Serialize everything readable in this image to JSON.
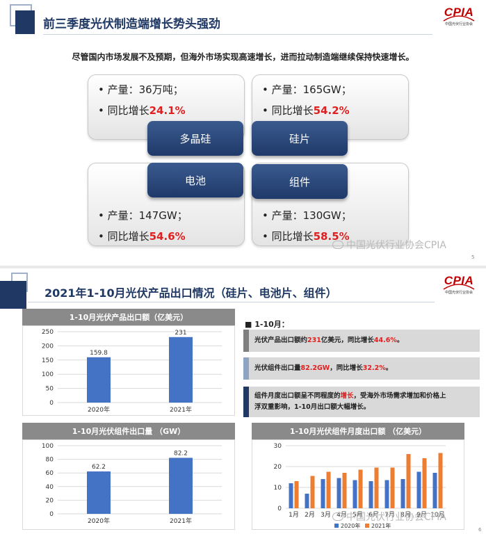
{
  "slide1": {
    "title": "前三季度光伏制造端增长势头强劲",
    "logo_text": "CPIA",
    "logo_sub": "中国光伏行业协会",
    "subtitle": "尽管国内市场发展不及预期，但海外市场实现高速增长，进而拉动制造端继续保持快速增长。",
    "boxes": [
      {
        "name": "多晶硅",
        "prod_label": "• 产量：",
        "prod_value": "36万吨；",
        "growth_label": "• 同比增长",
        "growth_value": "24.1%"
      },
      {
        "name": "硅片",
        "prod_label": "• 产量：",
        "prod_value": "165GW；",
        "growth_label": "• 同比增长",
        "growth_value": "54.2%"
      },
      {
        "name": "电池",
        "prod_label": "• 产量：",
        "prod_value": "147GW；",
        "growth_label": "• 同比增长",
        "growth_value": "54.6%"
      },
      {
        "name": "组件",
        "prod_label": "• 产量：",
        "prod_value": "130GW；",
        "growth_label": "• 同比增长",
        "growth_value": "58.5%"
      }
    ],
    "page_number": "5",
    "watermark": "中国光伏行业协会CPIA"
  },
  "slide2": {
    "title": "2021年1-10月光伏产品出口情况（硅片、电池片、组件）",
    "logo_text": "CPIA",
    "logo_sub": "中国光伏行业协会",
    "info_heading": "■  1-10月：",
    "info": [
      {
        "pre": "光伏产品出口额约",
        "v1": "231",
        "mid": "亿美元，同比增长",
        "v2": "44.6%",
        "post": "。"
      },
      {
        "pre": "光伏组件出口量",
        "v1": "82.2GW",
        "mid": "，同比增长",
        "v2": "32.2%",
        "post": "。"
      },
      {
        "pre": "组件月度出口额呈不同程度的",
        "v1": "增长",
        "mid": "，受海外市场需求增加和价格上",
        "line2": "浮双重影响，1-10月出口额大幅增长。"
      }
    ],
    "page_number": "6",
    "watermark": "中国光伏行业协会CPIA",
    "legend_partial": "2020年  2021年"
  },
  "chart_data": [
    {
      "type": "bar",
      "title": "1-10月光伏产品出口额（亿美元）",
      "categories": [
        "2020年",
        "2021年"
      ],
      "values": [
        159.8,
        231
      ],
      "data_labels": [
        "159.8",
        "231"
      ],
      "ylim": [
        0,
        250
      ],
      "yticks": [
        "0",
        "50",
        "100",
        "150",
        "200",
        "250"
      ],
      "color": "#4472c4",
      "grid": true
    },
    {
      "type": "bar",
      "title": "1-10月光伏组件出口量 （GW）",
      "categories": [
        "2020年",
        "2021年"
      ],
      "values": [
        62.2,
        82.2
      ],
      "data_labels": [
        "62.2",
        "82.2"
      ],
      "ylim": [
        0,
        100
      ],
      "yticks": [
        "0",
        "20",
        "40",
        "60",
        "80",
        "100"
      ],
      "color": "#4472c4",
      "grid": true
    },
    {
      "type": "bar",
      "title": "1-10月光伏组件月度出口额 （亿美元）",
      "categories": [
        "1月",
        "2月",
        "3月",
        "4月",
        "5月",
        "6月",
        "7月",
        "8月",
        "9月",
        "10月"
      ],
      "series": [
        {
          "name": "2020年",
          "color": "#4472c4",
          "values": [
            12,
            7,
            14,
            14.5,
            13.5,
            13,
            13.5,
            14,
            17.5,
            17
          ]
        },
        {
          "name": "2021年",
          "color": "#ed7d31",
          "values": [
            13,
            15.5,
            17.5,
            17,
            18.5,
            19.5,
            19.5,
            26,
            24,
            26.5
          ]
        }
      ],
      "ylim": [
        0,
        30
      ],
      "yticks": [
        "0",
        "10",
        "20",
        "30"
      ],
      "grid": true
    }
  ]
}
